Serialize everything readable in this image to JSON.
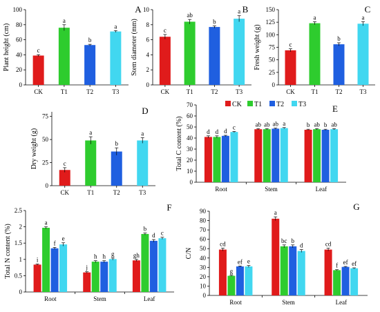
{
  "colors": {
    "CK": "#e01b1b",
    "T1": "#2ecc2e",
    "T2": "#1f5fe0",
    "T3": "#41d7f0",
    "axis": "#000000",
    "letter": "#7b1fa2"
  },
  "legend": [
    "CK",
    "T1",
    "T2",
    "T3"
  ],
  "chart_data": [
    {
      "panel": "A",
      "type": "bar",
      "xlabel": "",
      "ylabel": "Plant height (cm)",
      "categories": [
        "CK",
        "T1",
        "T2",
        "T3"
      ],
      "yticks": [
        0,
        20,
        40,
        60,
        80,
        100
      ],
      "ylim": [
        0,
        100
      ],
      "values": [
        39,
        76,
        53,
        71
      ],
      "errors": [
        1.2,
        4,
        1,
        1.2
      ],
      "letters": [
        "c",
        "a",
        "b",
        "a"
      ]
    },
    {
      "panel": "B",
      "type": "bar",
      "xlabel": "",
      "ylabel": "Stem diameter (mm)",
      "categories": [
        "CK",
        "T1",
        "T2",
        "T3"
      ],
      "yticks": [
        0,
        2,
        4,
        6,
        8,
        10
      ],
      "ylim": [
        0,
        10
      ],
      "values": [
        6.4,
        8.4,
        7.7,
        8.8
      ],
      "errors": [
        0.3,
        0.3,
        0.15,
        0.4
      ],
      "letters": [
        "c",
        "ab",
        "b",
        "a"
      ]
    },
    {
      "panel": "C",
      "type": "bar",
      "xlabel": "",
      "ylabel": "Fresh weight (g)",
      "categories": [
        "CK",
        "T1",
        "T2",
        "T3"
      ],
      "yticks": [
        0,
        25,
        50,
        75,
        100,
        125,
        150
      ],
      "ylim": [
        0,
        150
      ],
      "values": [
        69,
        123,
        81,
        122
      ],
      "errors": [
        3,
        3,
        3,
        4
      ],
      "letters": [
        "c",
        "a",
        "b",
        "a"
      ]
    },
    {
      "panel": "D",
      "type": "bar",
      "xlabel": "",
      "ylabel": "Dry weight (g)",
      "categories": [
        "CK",
        "T1",
        "T2",
        "T3"
      ],
      "yticks": [
        0,
        25,
        50,
        75
      ],
      "ylim": [
        0,
        80
      ],
      "values": [
        17,
        49,
        37,
        49
      ],
      "errors": [
        2.5,
        4,
        4,
        3
      ],
      "letters": [
        "c",
        "a",
        "b",
        "a"
      ]
    },
    {
      "panel": "E",
      "type": "bar",
      "xlabel": "",
      "ylabel": "Total C content (%)",
      "categories": [
        "Root",
        "Stem",
        "Leaf"
      ],
      "yticks": [
        0,
        10,
        20,
        30,
        40,
        50,
        60,
        70
      ],
      "ylim": [
        0,
        70
      ],
      "series": [
        {
          "name": "CK",
          "values": [
            41,
            48,
            47.5
          ],
          "errors": [
            1,
            0.5,
            0.5
          ],
          "letters": [
            "d",
            "ab",
            "b"
          ]
        },
        {
          "name": "T1",
          "values": [
            41,
            48,
            48
          ],
          "errors": [
            1,
            0.5,
            0.5
          ],
          "letters": [
            "d",
            "ab",
            "ab"
          ]
        },
        {
          "name": "T2",
          "values": [
            42,
            48.5,
            47.5
          ],
          "errors": [
            0.5,
            0.5,
            0.5
          ],
          "letters": [
            "d",
            "ab",
            "b"
          ]
        },
        {
          "name": "T3",
          "values": [
            45.5,
            49,
            48
          ],
          "errors": [
            0.5,
            0.5,
            0.5
          ],
          "letters": [
            "c",
            "a",
            "ab"
          ]
        }
      ]
    },
    {
      "panel": "F",
      "type": "bar",
      "xlabel": "",
      "ylabel": "Total N content (%)",
      "categories": [
        "Root",
        "Stem",
        "Leaf"
      ],
      "yticks": [
        0,
        0.5,
        1,
        1.5,
        2,
        2.5
      ],
      "ylim": [
        0,
        2.5
      ],
      "series": [
        {
          "name": "CK",
          "values": [
            0.84,
            0.6,
            0.97
          ],
          "errors": [
            0.02,
            0.02,
            0.03
          ],
          "letters": [
            "i",
            "j",
            "gh"
          ]
        },
        {
          "name": "T1",
          "values": [
            1.97,
            0.93,
            1.78
          ],
          "errors": [
            0.03,
            0.03,
            0.03
          ],
          "letters": [
            "a",
            "h",
            "b"
          ]
        },
        {
          "name": "T2",
          "values": [
            1.34,
            0.93,
            1.57
          ],
          "errors": [
            0.03,
            0.03,
            0.04
          ],
          "letters": [
            "f",
            "h",
            "d"
          ]
        },
        {
          "name": "T3",
          "values": [
            1.46,
            1.01,
            1.65
          ],
          "errors": [
            0.05,
            0.03,
            0.03
          ],
          "letters": [
            "e",
            "g",
            "c"
          ]
        }
      ]
    },
    {
      "panel": "G",
      "type": "bar",
      "xlabel": "",
      "ylabel": "C/N",
      "categories": [
        "Root",
        "Stem",
        "Leaf"
      ],
      "yticks": [
        0,
        10,
        20,
        30,
        40,
        50,
        60,
        70,
        80,
        90
      ],
      "ylim": [
        0,
        90
      ],
      "series": [
        {
          "name": "CK",
          "values": [
            49,
            82,
            49
          ],
          "errors": [
            1.5,
            2,
            1.5
          ],
          "letters": [
            "cd",
            "a",
            "cd"
          ]
        },
        {
          "name": "T1",
          "values": [
            21,
            52.5,
            27
          ],
          "errors": [
            0.5,
            1.5,
            0.5
          ],
          "letters": [
            "g",
            "bc",
            "f"
          ]
        },
        {
          "name": "T2",
          "values": [
            31,
            52.5,
            30.5
          ],
          "errors": [
            0.5,
            1.5,
            0.5
          ],
          "letters": [
            "ef",
            "b",
            "ef"
          ]
        },
        {
          "name": "T3",
          "values": [
            31,
            47.5,
            29
          ],
          "errors": [
            1,
            1.5,
            0.5
          ],
          "letters": [
            "e",
            "d",
            "ef"
          ]
        }
      ]
    }
  ]
}
